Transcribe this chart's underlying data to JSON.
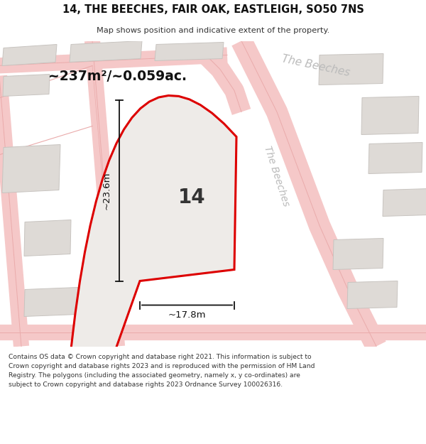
{
  "title": "14, THE BEECHES, FAIR OAK, EASTLEIGH, SO50 7NS",
  "subtitle": "Map shows position and indicative extent of the property.",
  "area_text": "~237m²/~0.059ac.",
  "dim_width": "~17.8m",
  "dim_height": "~23.6m",
  "house_number": "14",
  "street_name_top": "The Beeches",
  "street_name_side": "The Beeches",
  "footer": "Contains OS data © Crown copyright and database right 2021. This information is subject to Crown copyright and database rights 2023 and is reproduced with the permission of HM Land Registry. The polygons (including the associated geometry, namely x, y co-ordinates) are subject to Crown copyright and database rights 2023 Ordnance Survey 100026316.",
  "bg_color": "#f5f3f1",
  "map_bg_color": "#f5f3f1",
  "road_fill": "#f5c8c8",
  "road_edge": "#eaabab",
  "building_fill": "#dedad6",
  "building_edge": "#c8c4c0",
  "plot_fill": "#eeebe8",
  "plot_edge": "#dd0000",
  "dim_color": "#111111",
  "text_dark": "#111111",
  "street_label_color": "#bbbbbb",
  "footer_color": "#333333"
}
